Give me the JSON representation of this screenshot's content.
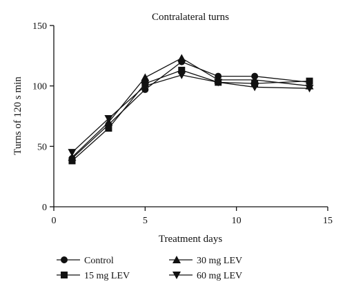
{
  "colors": {
    "ink": "#111111",
    "background": "#ffffff"
  },
  "chart_data": {
    "type": "line",
    "title": "Contralateral turns",
    "xlabel": "Treatment days",
    "ylabel": "Turns of 120 s min",
    "xlim": [
      0,
      15
    ],
    "ylim": [
      0,
      150
    ],
    "x_ticks": [
      0,
      5,
      10,
      15
    ],
    "y_ticks": [
      0,
      50,
      100,
      150
    ],
    "x_tick_labels": [
      "0",
      "5",
      "10",
      "15"
    ],
    "y_tick_labels": [
      "0",
      "50",
      "100",
      "150"
    ],
    "grid": false,
    "legend_position": "bottom",
    "x": [
      1,
      3,
      5,
      7,
      9,
      11,
      14
    ],
    "series": [
      {
        "name": "Control",
        "marker": "circle",
        "values": [
          40,
          68,
          97,
          120,
          108,
          108,
          103
        ]
      },
      {
        "name": "15 mg LEV",
        "marker": "square",
        "values": [
          38,
          65,
          102,
          113,
          103,
          102,
          104
        ]
      },
      {
        "name": "30 mg LEV",
        "marker": "triangle-up",
        "values": [
          41,
          70,
          107,
          123,
          105,
          105,
          100
        ]
      },
      {
        "name": "60 mg LEV",
        "marker": "triangle-down",
        "values": [
          45,
          73,
          100,
          109,
          103,
          99,
          98
        ]
      }
    ]
  }
}
